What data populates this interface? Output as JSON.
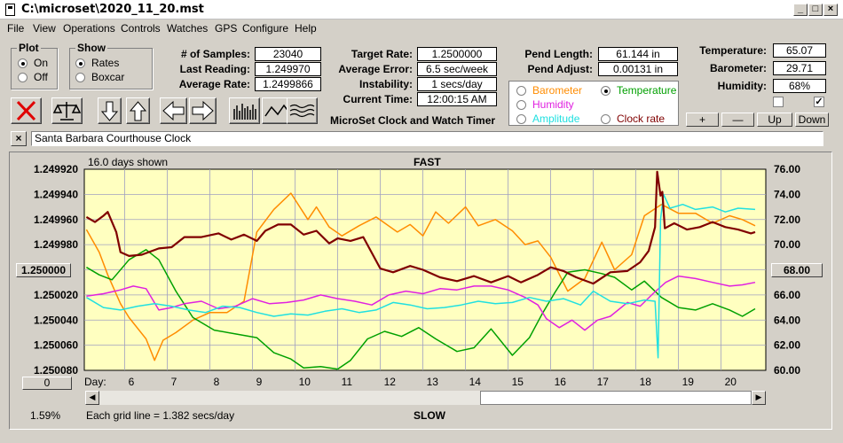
{
  "window": {
    "title": "C:\\microset\\2020_11_20.mst"
  },
  "menu": [
    "File",
    "View",
    "Operations",
    "Controls",
    "Watches",
    "GPS",
    "Configure",
    "Help"
  ],
  "plot_group": {
    "title": "Plot",
    "options": [
      "On",
      "Off"
    ],
    "selected": "On"
  },
  "show_group": {
    "title": "Show",
    "options": [
      "Rates",
      "Boxcar"
    ],
    "selected": "Rates"
  },
  "stats": {
    "samples_label": "# of Samples:",
    "samples": "23040",
    "last_label": "Last Reading:",
    "last": "1.249970",
    "avg_rate_label": "Average Rate:",
    "avg_rate": "1.2499866",
    "target_label": "Target Rate:",
    "target": "1.2500000",
    "avg_err_label": "Average Error:",
    "avg_err": "6.5 sec/week",
    "instab_label": "Instability:",
    "instab": "1 secs/day",
    "time_label": "Current Time:",
    "time": "12:00:15 AM",
    "pend_len_label": "Pend Length:",
    "pend_len": "61.144 in",
    "pend_adj_label": "Pend Adjust:",
    "pend_adj": "0.00131 in",
    "temp_label": "Temperature:",
    "temp": "65.07",
    "baro_label": "Barometer:",
    "baro": "29.71",
    "hum_label": "Humidity:",
    "hum": "68%"
  },
  "app_caption": "MicroSet Clock and Watch Timer",
  "sensors": {
    "barometer": "Barometer",
    "temperature": "Temperature",
    "humidity": "Humidity",
    "amplitude": "Amplitude",
    "clock_rate": "Clock rate",
    "selected": "Temperature",
    "colors": {
      "barometer": "#ff8c00",
      "temperature": "#00a000",
      "humidity": "#e020e0",
      "amplitude": "#20e0e0",
      "clock_rate": "#800000"
    }
  },
  "adjust_buttons": {
    "plus": "+",
    "minus": "—",
    "up": "Up",
    "down": "Down"
  },
  "clock_name": "Santa Barbara Courthouse Clock",
  "chart_top": {
    "days_shown": "16.0 days shown",
    "fast": "FAST",
    "slow": "SLOW"
  },
  "chart_bottom": {
    "zoom": "1.59%",
    "grid_note": "Each grid line = 1.382 secs/day",
    "left_btn": "0",
    "right_btn": "68.00",
    "day_label": "Day:"
  },
  "chart_data": {
    "type": "line",
    "x_label": "Day",
    "x_ticks": [
      6,
      7,
      8,
      9,
      10,
      11,
      12,
      13,
      14,
      15,
      16,
      17,
      18,
      19,
      20
    ],
    "xlim": [
      5.05,
      21.05
    ],
    "y_left_ticks": [
      "1.249920",
      "1.249940",
      "1.249960",
      "1.249980",
      "1.250000",
      "1.250020",
      "1.250040",
      "1.250060",
      "1.250080"
    ],
    "ylim_left": [
      1.24992,
      1.25008
    ],
    "y_right_ticks": [
      "76.00",
      "74.00",
      "72.00",
      "70.00",
      "68.00",
      "66.00",
      "64.00",
      "62.00",
      "60.00"
    ],
    "ylim_right": [
      60,
      76
    ],
    "series": [
      {
        "key": "barometer",
        "color": "#ff8c00",
        "axis": "right",
        "x": [
          5.1,
          5.4,
          5.6,
          5.9,
          6.1,
          6.5,
          6.7,
          6.9,
          7.2,
          7.6,
          8.0,
          8.4,
          8.8,
          9.1,
          9.5,
          9.9,
          10.3,
          10.5,
          10.8,
          11.1,
          11.5,
          11.9,
          12.4,
          12.7,
          13.0,
          13.3,
          13.6,
          14.0,
          14.3,
          14.7,
          15.1,
          15.4,
          15.7,
          16.0,
          16.4,
          16.8,
          17.2,
          17.5,
          17.9,
          18.2,
          18.6,
          19.0,
          19.4,
          19.8,
          20.2,
          20.5,
          20.8
        ],
        "y": [
          71.2,
          69.4,
          67.6,
          65.3,
          64.2,
          62.5,
          60.8,
          62.4,
          63.0,
          64.0,
          64.6,
          64.6,
          65.5,
          71.0,
          72.8,
          74.1,
          72.0,
          73.0,
          71.4,
          70.7,
          71.5,
          72.2,
          71.0,
          71.6,
          70.7,
          72.6,
          71.7,
          73.0,
          71.5,
          72.0,
          71.1,
          70.0,
          70.3,
          69.0,
          66.3,
          67.3,
          70.2,
          68.0,
          69.2,
          72.3,
          73.2,
          72.5,
          72.5,
          71.7,
          72.3,
          72.0,
          71.5
        ]
      },
      {
        "key": "temperature",
        "color": "#00a000",
        "axis": "right",
        "x": [
          5.1,
          5.4,
          5.7,
          6.1,
          6.5,
          6.8,
          7.2,
          7.6,
          8.1,
          8.6,
          9.1,
          9.5,
          9.9,
          10.2,
          10.6,
          11.0,
          11.3,
          11.7,
          12.1,
          12.5,
          12.9,
          13.3,
          13.8,
          14.2,
          14.6,
          15.1,
          15.5,
          15.8,
          16.1,
          16.4,
          16.8,
          17.2,
          17.5,
          17.9,
          18.2,
          18.6,
          19.0,
          19.4,
          19.8,
          20.2,
          20.5,
          20.8
        ],
        "y": [
          68.2,
          67.6,
          67.2,
          68.8,
          69.6,
          68.8,
          66.3,
          64.2,
          63.2,
          62.9,
          62.6,
          61.4,
          60.9,
          60.2,
          60.3,
          60.1,
          60.8,
          62.5,
          63.1,
          62.7,
          63.4,
          62.5,
          61.5,
          61.8,
          63.3,
          61.2,
          62.6,
          64.5,
          66.2,
          67.8,
          68.0,
          67.7,
          67.4,
          66.4,
          67.1,
          65.8,
          65.0,
          64.8,
          65.3,
          64.8,
          64.3,
          64.9
        ]
      },
      {
        "key": "humidity",
        "color": "#e020e0",
        "axis": "right",
        "x": [
          5.1,
          5.5,
          5.9,
          6.2,
          6.5,
          6.8,
          7.1,
          7.4,
          7.8,
          8.2,
          8.6,
          9.0,
          9.4,
          9.8,
          10.2,
          10.6,
          11.0,
          11.4,
          11.8,
          12.2,
          12.6,
          13.0,
          13.4,
          13.8,
          14.2,
          14.6,
          15.0,
          15.4,
          15.7,
          15.9,
          16.2,
          16.5,
          16.8,
          17.1,
          17.4,
          17.8,
          18.1,
          18.4,
          18.7,
          19.0,
          19.4,
          19.8,
          20.2,
          20.5,
          20.8
        ],
        "y": [
          65.9,
          66.1,
          66.4,
          66.7,
          66.5,
          64.8,
          65.0,
          65.3,
          65.5,
          64.9,
          65.1,
          65.7,
          65.3,
          65.4,
          65.6,
          66.0,
          65.7,
          65.5,
          65.2,
          66.0,
          66.3,
          66.1,
          66.5,
          66.4,
          66.7,
          66.7,
          66.4,
          65.8,
          65.2,
          64.1,
          63.4,
          64.0,
          63.2,
          64.0,
          64.3,
          65.4,
          65.1,
          66.1,
          67.0,
          67.5,
          67.3,
          67.0,
          66.7,
          66.8,
          67.0
        ]
      },
      {
        "key": "amplitude",
        "color": "#20e0e0",
        "axis": "right",
        "x": [
          5.1,
          5.5,
          5.9,
          6.3,
          6.7,
          7.1,
          7.5,
          7.9,
          8.3,
          8.7,
          9.1,
          9.5,
          9.9,
          10.3,
          10.7,
          11.1,
          11.5,
          11.9,
          12.3,
          12.7,
          13.1,
          13.5,
          13.9,
          14.3,
          14.7,
          15.1,
          15.5,
          15.9,
          16.3,
          16.7,
          17.0,
          17.4,
          17.8,
          18.2,
          18.45,
          18.52,
          18.58,
          18.65,
          18.8,
          19.1,
          19.4,
          19.8,
          20.1,
          20.4,
          20.8
        ],
        "y": [
          65.8,
          65.0,
          64.8,
          65.1,
          65.3,
          65.1,
          64.8,
          64.6,
          65.1,
          65.0,
          64.6,
          64.3,
          64.5,
          64.4,
          64.7,
          64.9,
          64.6,
          64.8,
          65.4,
          65.2,
          64.9,
          65.0,
          65.2,
          65.5,
          65.3,
          65.4,
          65.8,
          65.5,
          65.7,
          65.2,
          66.3,
          65.5,
          65.3,
          65.6,
          65.5,
          61.0,
          72.0,
          74.0,
          72.9,
          73.2,
          72.8,
          73.0,
          72.6,
          72.9,
          72.8
        ]
      },
      {
        "key": "clock_rate",
        "color": "#800000",
        "axis": "left",
        "x": [
          5.1,
          5.3,
          5.5,
          5.6,
          5.8,
          5.9,
          6.1,
          6.4,
          6.8,
          7.1,
          7.4,
          7.8,
          8.2,
          8.5,
          8.8,
          9.1,
          9.3,
          9.6,
          9.9,
          10.2,
          10.5,
          10.8,
          11.0,
          11.3,
          11.6,
          12.0,
          12.3,
          12.7,
          13.0,
          13.4,
          13.8,
          14.2,
          14.6,
          15.0,
          15.3,
          15.7,
          16.0,
          16.3,
          16.6,
          17.0,
          17.4,
          17.8,
          18.1,
          18.3,
          18.45,
          18.5,
          18.58,
          18.62,
          18.68,
          18.9,
          19.2,
          19.5,
          19.8,
          20.1,
          20.4,
          20.7,
          20.8
        ],
        "y": [
          1.249958,
          1.249962,
          1.249957,
          1.249954,
          1.24997,
          1.249986,
          1.249989,
          1.249988,
          1.249983,
          1.249982,
          1.249974,
          1.249974,
          1.249971,
          1.249976,
          1.249972,
          1.249977,
          1.249969,
          1.249964,
          1.249964,
          1.249972,
          1.249969,
          1.249979,
          1.249975,
          1.249977,
          1.249974,
          1.249999,
          1.250002,
          1.249997,
          1.25,
          1.250006,
          1.250009,
          1.250005,
          1.25001,
          1.250005,
          1.25001,
          1.250004,
          1.249998,
          1.250001,
          1.250006,
          1.250011,
          1.250002,
          1.250001,
          1.249994,
          1.249985,
          1.249966,
          1.249922,
          1.249941,
          1.249938,
          1.249967,
          1.249963,
          1.249968,
          1.249966,
          1.249962,
          1.249966,
          1.249968,
          1.249971,
          1.24997
        ]
      }
    ]
  }
}
